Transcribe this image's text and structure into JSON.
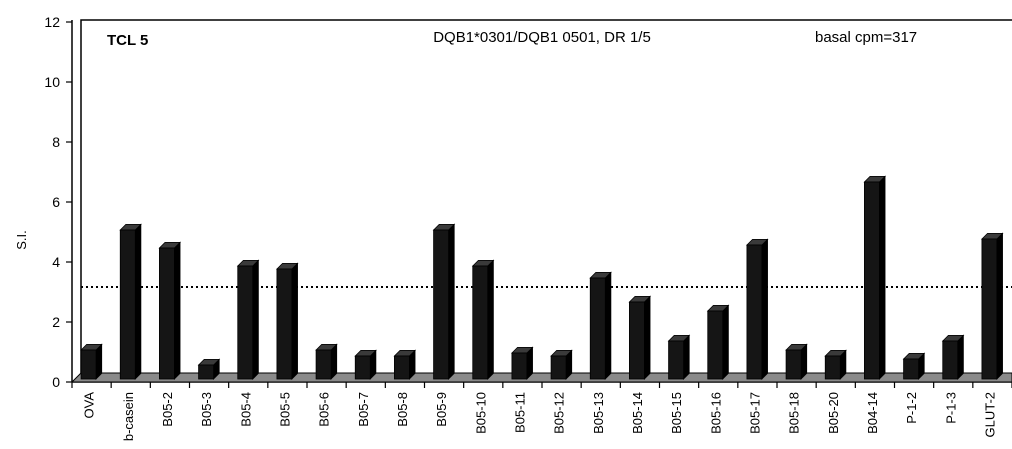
{
  "chart_data": {
    "type": "bar",
    "title": "",
    "xlabel": "",
    "ylabel": "S.I.",
    "ylim": [
      0,
      12
    ],
    "yticks": [
      "0",
      "2",
      "4",
      "6",
      "8",
      "10",
      "12"
    ],
    "threshold": 3,
    "grid": false,
    "annotations": {
      "cell_line": "TCL 5",
      "haplotype": "DQB1*0301/DQB1 0501, DR 1/5",
      "basal": "basal cpm=317"
    },
    "categories": [
      "OVA",
      "b-casein",
      "B05-2",
      "B05-3",
      "B05-4",
      "B05-5",
      "B05-6",
      "B05-7",
      "B05-8",
      "B05-9",
      "B05-10",
      "B05-11",
      "B05-12",
      "B05-13",
      "B05-14",
      "B05-15",
      "B05-16",
      "B05-17",
      "B05-18",
      "B05-20",
      "B04-14",
      "P-1-2",
      "P-1-3",
      "GLUT-2"
    ],
    "values": [
      1.0,
      5.0,
      4.4,
      0.5,
      3.8,
      3.7,
      1.0,
      0.8,
      0.8,
      5.0,
      3.8,
      0.9,
      0.8,
      3.4,
      2.6,
      1.3,
      2.3,
      4.5,
      1.0,
      0.8,
      6.6,
      0.7,
      1.3,
      4.7
    ],
    "colors": {
      "bar_front": "#151515",
      "bar_top": "#3a3a3a",
      "bar_side": "#000000",
      "floor": "#8a8a8a"
    }
  }
}
